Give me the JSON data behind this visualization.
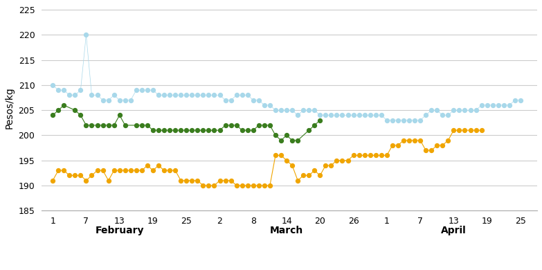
{
  "title": "",
  "ylabel": "Pesos/kg",
  "ylim": [
    185,
    226
  ],
  "yticks": [
    185,
    190,
    195,
    200,
    205,
    210,
    215,
    220,
    225
  ],
  "colors": {
    "2018": "#3a7d1e",
    "2019": "#a8d8ea",
    "2020": "#f0a500"
  },
  "x_tick_labels": [
    "1",
    "7",
    "13",
    "19",
    "25",
    "2",
    "8",
    "14",
    "20",
    "26",
    "1",
    "7",
    "13",
    "19",
    "25"
  ],
  "x_tick_positions": [
    1,
    7,
    13,
    19,
    25,
    31,
    37,
    43,
    49,
    55,
    61,
    67,
    73,
    79,
    85
  ],
  "month_labels": [
    "February",
    "March",
    "April"
  ],
  "month_centers": [
    13,
    43,
    73
  ],
  "data_2018": {
    "x": [
      1,
      2,
      3,
      5,
      6,
      7,
      8,
      9,
      10,
      11,
      12,
      13,
      14,
      16,
      17,
      18,
      19,
      20,
      21,
      22,
      23,
      24,
      25,
      26,
      27,
      28,
      29,
      30,
      31,
      32,
      33,
      34,
      35,
      36,
      37,
      38,
      39,
      40,
      41,
      42,
      43,
      44,
      45,
      47,
      48,
      49
    ],
    "y": [
      204,
      205,
      206,
      205,
      204,
      202,
      202,
      202,
      202,
      202,
      202,
      204,
      202,
      202,
      202,
      202,
      201,
      201,
      201,
      201,
      201,
      201,
      201,
      201,
      201,
      201,
      201,
      201,
      201,
      202,
      202,
      202,
      201,
      201,
      201,
      202,
      202,
      202,
      200,
      199,
      200,
      199,
      199,
      201,
      202,
      203
    ]
  },
  "data_2019": {
    "x": [
      1,
      2,
      3,
      4,
      5,
      6,
      7,
      8,
      9,
      10,
      11,
      12,
      13,
      14,
      15,
      16,
      17,
      18,
      19,
      20,
      21,
      22,
      23,
      24,
      25,
      26,
      27,
      28,
      29,
      30,
      31,
      32,
      33,
      34,
      35,
      36,
      37,
      38,
      39,
      40,
      41,
      42,
      43,
      44,
      45,
      46,
      47,
      48,
      49,
      50,
      51,
      52,
      53,
      54,
      55,
      56,
      57,
      58,
      59,
      60,
      61,
      62,
      63,
      64,
      65,
      66,
      67,
      68,
      69,
      70,
      71,
      72,
      73,
      74,
      75,
      76,
      77,
      78,
      79,
      80,
      81,
      82,
      83,
      84,
      85
    ],
    "y": [
      210,
      209,
      209,
      208,
      208,
      209,
      220,
      208,
      208,
      207,
      207,
      208,
      207,
      207,
      207,
      209,
      209,
      209,
      209,
      208,
      208,
      208,
      208,
      208,
      208,
      208,
      208,
      208,
      208,
      208,
      208,
      207,
      207,
      208,
      208,
      208,
      207,
      207,
      206,
      206,
      205,
      205,
      205,
      205,
      204,
      205,
      205,
      205,
      204,
      204,
      204,
      204,
      204,
      204,
      204,
      204,
      204,
      204,
      204,
      204,
      203,
      203,
      203,
      203,
      203,
      203,
      203,
      204,
      205,
      205,
      204,
      204,
      205,
      205,
      205,
      205,
      205,
      206,
      206,
      206,
      206,
      206,
      206,
      207,
      207
    ]
  },
  "data_2020": {
    "x": [
      1,
      2,
      3,
      4,
      5,
      6,
      7,
      8,
      9,
      10,
      11,
      12,
      13,
      14,
      15,
      16,
      17,
      18,
      19,
      20,
      21,
      22,
      23,
      24,
      25,
      26,
      27,
      28,
      29,
      30,
      31,
      32,
      33,
      34,
      35,
      36,
      37,
      38,
      39,
      40,
      41,
      42,
      43,
      44,
      45,
      46,
      47,
      48,
      49,
      50,
      51,
      52,
      53,
      54,
      55,
      56,
      57,
      58,
      59,
      60,
      61,
      62,
      63,
      64,
      65,
      66,
      67,
      68,
      69,
      70,
      71,
      72,
      73,
      74,
      75,
      76,
      77,
      78
    ],
    "y": [
      191,
      193,
      193,
      192,
      192,
      192,
      191,
      192,
      193,
      193,
      191,
      193,
      193,
      193,
      193,
      193,
      193,
      194,
      193,
      194,
      193,
      193,
      193,
      191,
      191,
      191,
      191,
      190,
      190,
      190,
      191,
      191,
      191,
      190,
      190,
      190,
      190,
      190,
      190,
      190,
      196,
      196,
      195,
      194,
      191,
      192,
      192,
      193,
      192,
      194,
      194,
      195,
      195,
      195,
      196,
      196,
      196,
      196,
      196,
      196,
      196,
      198,
      198,
      199,
      199,
      199,
      199,
      197,
      197,
      198,
      198,
      199,
      201,
      201,
      201,
      201,
      201,
      201
    ]
  },
  "figsize": [
    7.83,
    3.9
  ],
  "dpi": 100
}
